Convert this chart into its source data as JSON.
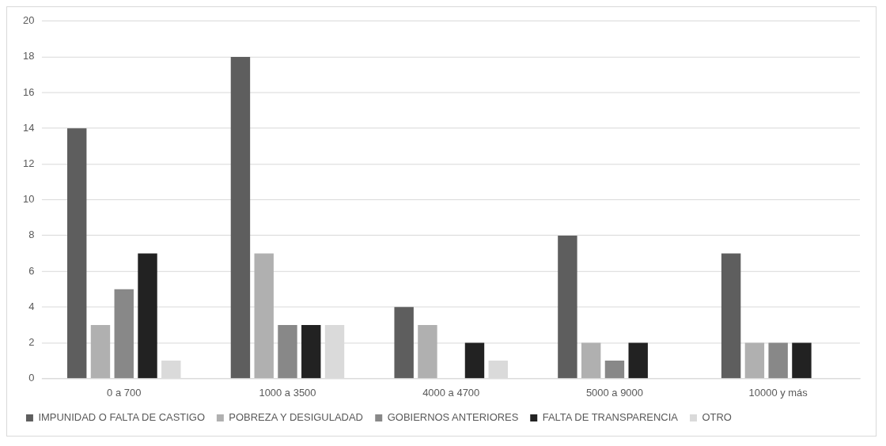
{
  "chart_data": {
    "type": "bar",
    "categories": [
      "0 a 700",
      "1000 a 3500",
      "4000 a 4700",
      "5000 a 9000",
      "10000 y más"
    ],
    "series": [
      {
        "name": "IMPUNIDAD O FALTA DE CASTIGO",
        "color": "#5e5e5e",
        "values": [
          14,
          18,
          4,
          8,
          7
        ]
      },
      {
        "name": "POBREZA Y DESIGULADAD",
        "color": "#b0b0b0",
        "values": [
          3,
          7,
          3,
          2,
          2
        ]
      },
      {
        "name": "GOBIERNOS ANTERIORES",
        "color": "#888888",
        "values": [
          5,
          3,
          0,
          1,
          2
        ]
      },
      {
        "name": "FALTA DE TRANSPARENCIA",
        "color": "#222222",
        "values": [
          7,
          3,
          2,
          2,
          2
        ]
      },
      {
        "name": "OTRO",
        "color": "#dadada",
        "values": [
          1,
          3,
          1,
          0,
          0
        ]
      }
    ],
    "ylim": [
      0,
      20
    ],
    "yticks": [
      0,
      2,
      4,
      6,
      8,
      10,
      12,
      14,
      16,
      18,
      20
    ],
    "grid": "y",
    "legend": "bottom"
  }
}
